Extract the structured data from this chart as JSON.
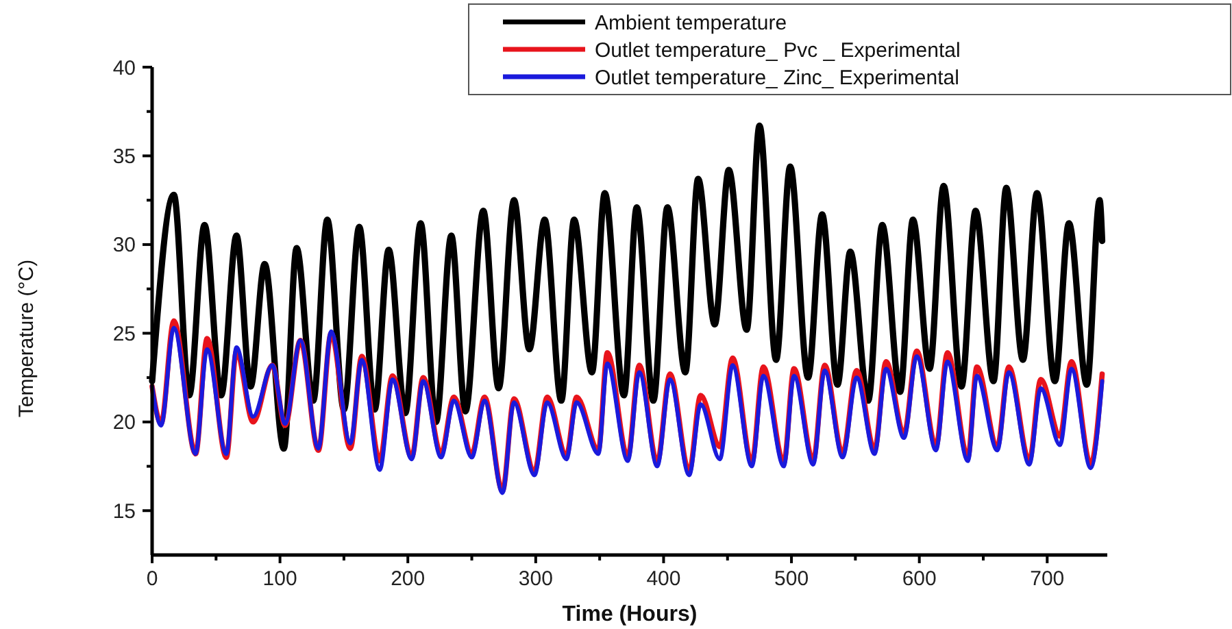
{
  "chart_data": {
    "type": "line",
    "xlabel": "Time (Hours)",
    "ylabel": "Temperature (°C)",
    "xlim": [
      0,
      747
    ],
    "ylim": [
      12.5,
      40
    ],
    "xticks": [
      0,
      {
        "value": 50,
        "label": null
      },
      100,
      {
        "value": 150,
        "label": null
      },
      200,
      {
        "value": 250,
        "label": null
      },
      300,
      {
        "value": 350,
        "label": null
      },
      400,
      {
        "value": 450,
        "label": null
      },
      500,
      {
        "value": 550,
        "label": null
      },
      600,
      {
        "value": 650,
        "label": null
      },
      700
    ],
    "yticks": [
      15,
      {
        "value": 17.5,
        "label": null
      },
      20,
      {
        "value": 22.5,
        "label": null
      },
      25,
      {
        "value": 27.5,
        "label": null
      },
      30,
      {
        "value": 32.5,
        "label": null
      },
      35,
      {
        "value": 37.5,
        "label": null
      },
      40
    ],
    "grid": false,
    "legend": "top right",
    "marker": "none",
    "line_style": "solid",
    "series": [
      {
        "name": "Ambient temperature",
        "color": "#000000",
        "x": [
          0,
          17,
          29,
          41,
          54,
          66,
          77,
          88,
          103,
          113,
          126,
          137,
          150,
          162,
          174,
          185,
          198,
          210,
          222,
          234,
          245,
          259,
          271,
          283,
          295,
          307,
          320,
          330,
          344,
          354,
          369,
          379,
          392,
          403,
          417,
          427,
          440,
          451,
          465,
          475,
          488,
          499,
          513,
          524,
          536,
          546,
          560,
          571,
          585,
          595,
          608,
          619,
          633,
          644,
          658,
          668,
          681,
          692,
          706,
          717,
          731,
          741,
          743
        ],
        "values": [
          22.3,
          32.8,
          21.5,
          31.1,
          21.5,
          30.5,
          22,
          28.9,
          18.5,
          29.8,
          21.2,
          31.4,
          20.7,
          31,
          20.7,
          29.7,
          20.5,
          31.2,
          20,
          30.5,
          20.6,
          31.9,
          21.9,
          32.5,
          24.1,
          31.4,
          21.2,
          31.4,
          22.8,
          32.9,
          21.5,
          32.1,
          21.2,
          32.1,
          22.8,
          33.7,
          25.5,
          34.2,
          25.2,
          36.7,
          23.5,
          34.4,
          22.5,
          31.7,
          22.1,
          29.6,
          21.2,
          31.1,
          21.7,
          31.4,
          23,
          33.3,
          22,
          31.9,
          22.3,
          33.2,
          23.5,
          32.9,
          22.3,
          31.2,
          22.1,
          32.5,
          30.2
        ]
      },
      {
        "name": "Outlet temperature_ Pvc _ Experimental",
        "color": "#e8141c",
        "x": [
          0,
          7,
          17,
          34,
          43,
          58,
          66,
          79,
          94,
          104,
          116,
          130,
          140,
          155,
          164,
          178,
          188,
          203,
          212,
          226,
          236,
          250,
          260,
          274,
          283,
          299,
          309,
          324,
          332,
          349,
          356,
          372,
          381,
          395,
          405,
          420,
          429,
          444,
          454,
          469,
          478,
          494,
          502,
          517,
          526,
          540,
          551,
          565,
          574,
          588,
          598,
          613,
          622,
          638,
          645,
          661,
          670,
          686,
          695,
          710,
          719,
          734,
          743
        ],
        "values": [
          22,
          19.9,
          25.7,
          18.2,
          24.7,
          18,
          24,
          20,
          23.2,
          19.8,
          24.6,
          18.4,
          25,
          18.5,
          23.7,
          17.8,
          22.6,
          18,
          22.5,
          18.2,
          21.4,
          18.2,
          21.4,
          16.1,
          21.3,
          17.2,
          21.4,
          18.1,
          21.4,
          18.4,
          23.9,
          18,
          23.2,
          17.7,
          22.7,
          17.2,
          21.5,
          18.6,
          23.6,
          17.7,
          23.1,
          17.7,
          23,
          17.8,
          23.2,
          18.2,
          22.9,
          18.4,
          23.4,
          19.3,
          24,
          18.6,
          23.9,
          18,
          23.1,
          18.6,
          23.1,
          17.8,
          22.4,
          19.2,
          23.4,
          17.6,
          22.7
        ]
      },
      {
        "name": "Outlet temperature_ Zinc_ Experimental",
        "color": "#1a1adc",
        "x": [
          0,
          7,
          17,
          34,
          43,
          58,
          66,
          79,
          94,
          104,
          116,
          130,
          140,
          155,
          164,
          178,
          188,
          203,
          212,
          226,
          236,
          250,
          260,
          274,
          283,
          299,
          309,
          324,
          332,
          349,
          356,
          372,
          381,
          395,
          405,
          420,
          429,
          444,
          454,
          469,
          478,
          494,
          502,
          517,
          526,
          540,
          551,
          565,
          574,
          588,
          598,
          613,
          622,
          638,
          645,
          661,
          670,
          686,
          695,
          710,
          719,
          734,
          743
        ],
        "values": [
          22,
          19.8,
          25.3,
          18.2,
          24.1,
          18.2,
          24.2,
          20.3,
          23.2,
          19.9,
          24.6,
          18.5,
          25.1,
          18.8,
          23.5,
          17.3,
          22.4,
          17.9,
          22.3,
          18,
          21.2,
          18,
          21.2,
          16,
          21.1,
          17,
          21.1,
          17.9,
          21.1,
          18.2,
          23.3,
          17.8,
          22.8,
          17.5,
          22.4,
          17,
          21,
          17.9,
          23.2,
          17.5,
          22.6,
          17.5,
          22.6,
          17.6,
          22.9,
          18,
          22.5,
          18.2,
          23,
          19.1,
          23.7,
          18.4,
          23.4,
          17.8,
          22.6,
          18.4,
          22.8,
          17.6,
          21.9,
          18.7,
          23,
          17.4,
          22.3
        ]
      }
    ]
  }
}
